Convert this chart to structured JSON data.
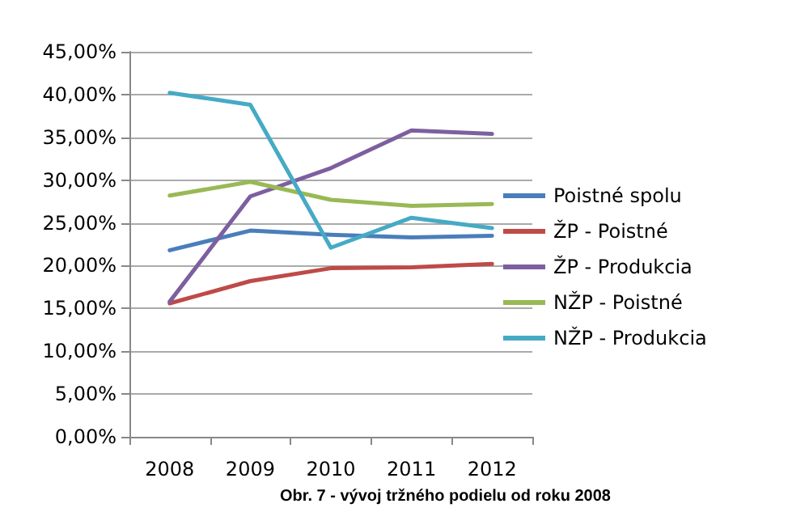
{
  "chart_data": {
    "type": "line",
    "title": "Obr. 7 - vývoj tržného podielu od roku 2008",
    "categories": [
      "2008",
      "2009",
      "2010",
      "2011",
      "2012"
    ],
    "series": [
      {
        "name": "Poistné spolu",
        "color": "#4a7ebb",
        "values": [
          21.8,
          24.1,
          23.6,
          23.3,
          23.5
        ]
      },
      {
        "name": "ŽP - Poistné",
        "color": "#be4b48",
        "values": [
          15.6,
          18.2,
          19.7,
          19.8,
          20.2
        ]
      },
      {
        "name": "ŽP - Produkcia",
        "color": "#7d5fa0",
        "values": [
          15.8,
          28.1,
          31.4,
          35.8,
          35.4
        ]
      },
      {
        "name": "NŽP - Poistné",
        "color": "#98b954",
        "values": [
          28.2,
          29.8,
          27.7,
          27.0,
          27.2
        ]
      },
      {
        "name": "NŽP - Produkcia",
        "color": "#46aac5",
        "values": [
          40.2,
          38.8,
          22.1,
          25.6,
          24.4
        ]
      }
    ],
    "ylim": [
      0,
      45
    ],
    "yticks": [
      {
        "value": 0,
        "label": "0,00%"
      },
      {
        "value": 5,
        "label": "5,00%"
      },
      {
        "value": 10,
        "label": "10,00%"
      },
      {
        "value": 15,
        "label": "15,00%"
      },
      {
        "value": 20,
        "label": "20,00%"
      },
      {
        "value": 25,
        "label": "25,00%"
      },
      {
        "value": 30,
        "label": "30,00%"
      },
      {
        "value": 35,
        "label": "35,00%"
      },
      {
        "value": 40,
        "label": "40,00%"
      },
      {
        "value": 45,
        "label": "45,00%"
      }
    ],
    "grid": "y",
    "legend": "right",
    "marker": "none",
    "line_style": "solid"
  }
}
